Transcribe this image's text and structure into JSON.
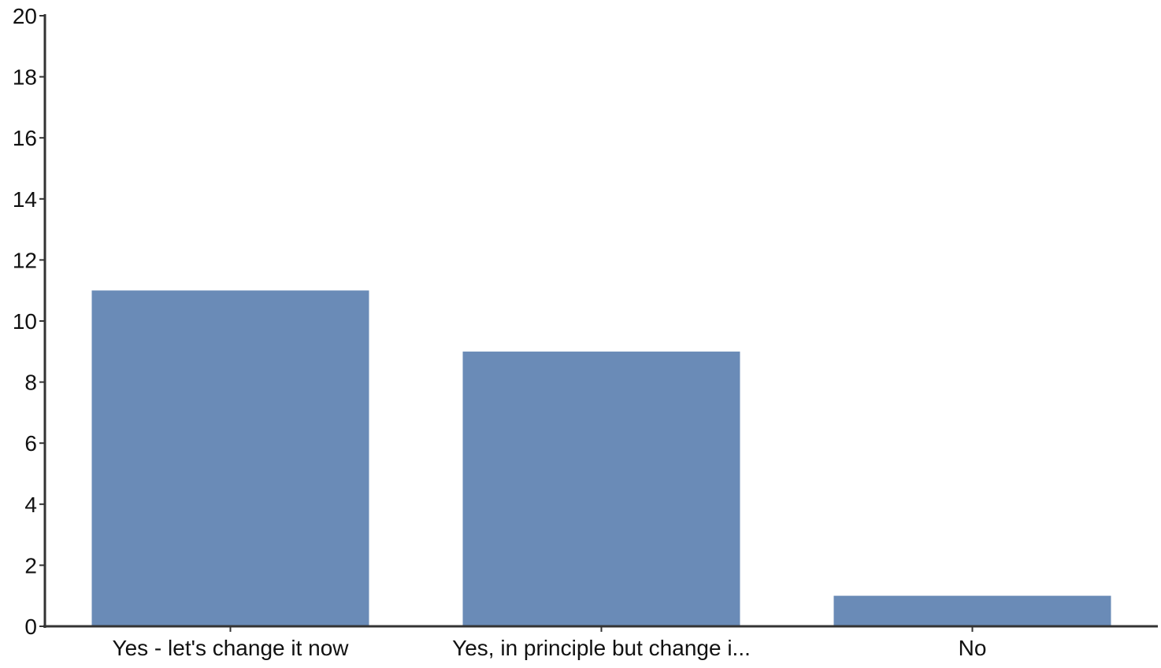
{
  "chart_data": {
    "type": "bar",
    "categories": [
      "Yes - let's change it now",
      "Yes, in principle but change i...",
      "No"
    ],
    "values": [
      11,
      9,
      1
    ],
    "ylim": [
      0,
      20
    ],
    "yticks": [
      0,
      2,
      4,
      6,
      8,
      10,
      12,
      14,
      16,
      18,
      20
    ],
    "title": "",
    "xlabel": "",
    "ylabel": "",
    "grid": false,
    "legend": "none",
    "colors": {
      "bar": "#6a8bb7",
      "axis": "#333333",
      "text": "#111111"
    }
  }
}
